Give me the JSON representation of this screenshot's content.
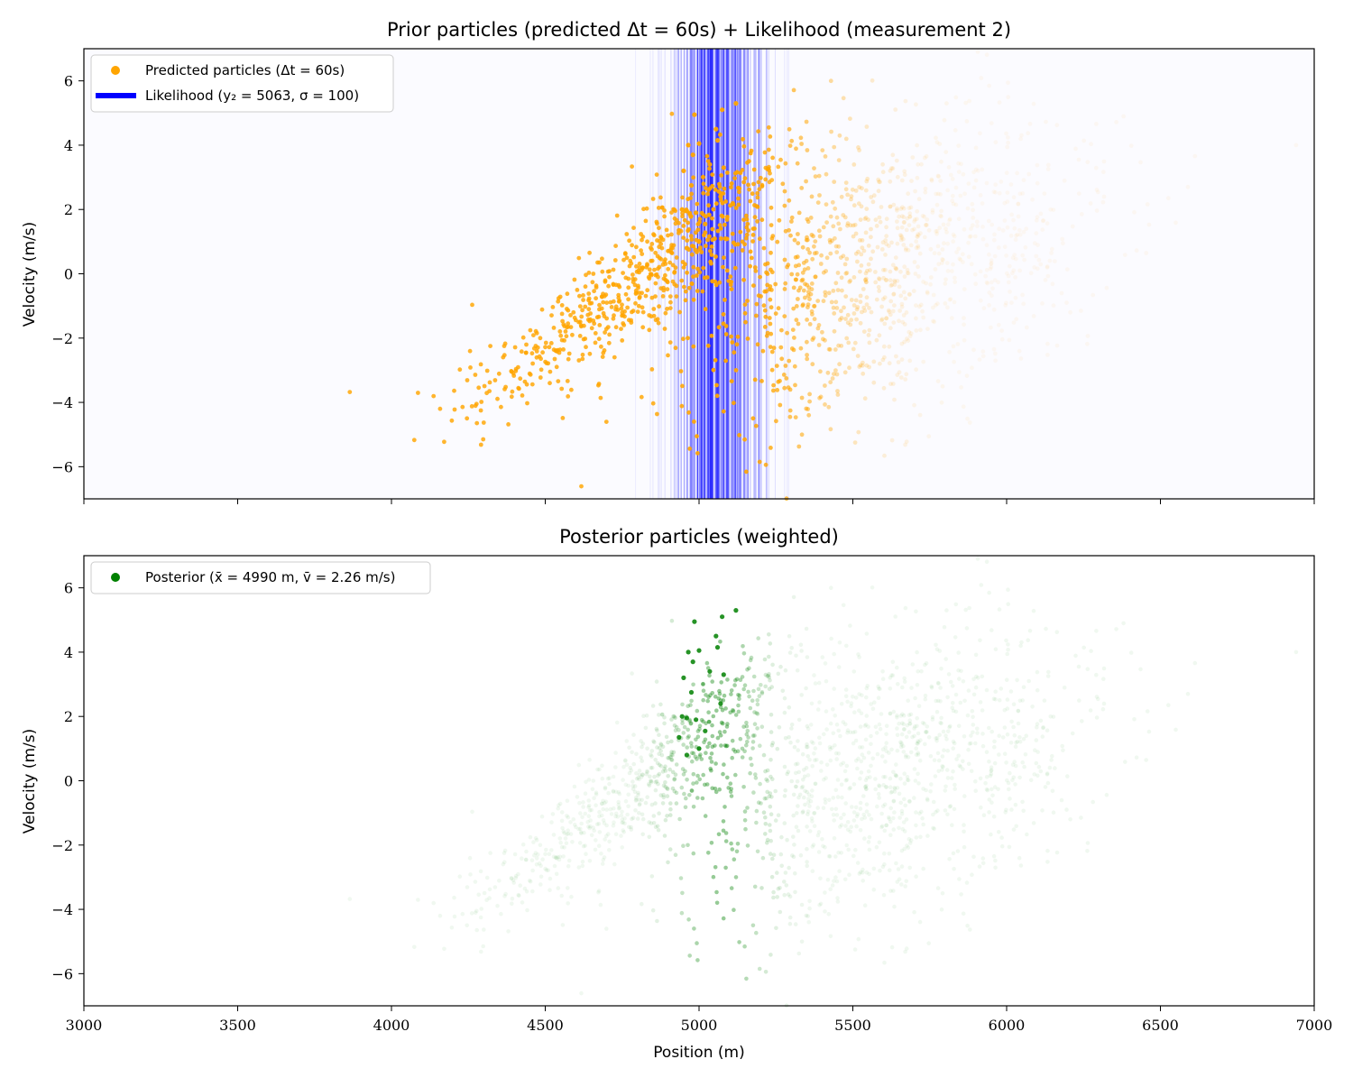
{
  "chart_data": [
    {
      "type": "scatter",
      "title": "Prior particles (predicted Δt = 60s) + Likelihood (measurement 2)",
      "xlabel": "",
      "ylabel": "Velocity (m/s)",
      "xlim": [
        3000,
        7000
      ],
      "ylim": [
        -7,
        7
      ],
      "xticks": [
        3000,
        3500,
        4000,
        4500,
        5000,
        5500,
        6000,
        6500,
        7000
      ],
      "yticks": [
        -6,
        -4,
        -2,
        0,
        2,
        4,
        6
      ],
      "ytick_labels": [
        "−6",
        "−4",
        "−2",
        "0",
        "2",
        "4",
        "6"
      ],
      "show_xtick_labels": false,
      "point_color": "#ffa500",
      "likelihood_color": "#0000ff",
      "legend_position": "upper-left",
      "legend": [
        {
          "kind": "marker",
          "color": "#ffa500",
          "label": "Predicted particles (Δt = 60s)"
        },
        {
          "kind": "line",
          "color": "#0000ff",
          "label": "Likelihood (y₂ = 5063,  σ = 100)"
        }
      ],
      "likelihood": {
        "center": 5063,
        "sigma": 100
      },
      "series": [
        {
          "values_note": "",
          "clusters": [
            {
              "x": 4690,
              "y": -1.2,
              "n": 380,
              "spread_x": 120,
              "spread_y": 1.6,
              "slope": 130
            },
            {
              "x": 4980,
              "y": 1.8,
              "n": 220,
              "spread_x": 90,
              "spread_y": 1.4,
              "slope": 110
            },
            {
              "x": 5600,
              "y": 0.2,
              "n": 1100,
              "spread_x": 330,
              "spread_y": 2.3,
              "slope": 55
            }
          ]
        }
      ]
    },
    {
      "type": "scatter",
      "title": "Posterior particles (weighted)",
      "xlabel": "Position (m)",
      "ylabel": "Velocity (m/s)",
      "xlim": [
        3000,
        7000
      ],
      "ylim": [
        -7,
        7
      ],
      "xticks": [
        3000,
        3500,
        4000,
        4500,
        5000,
        5500,
        6000,
        6500,
        7000
      ],
      "xtick_labels": [
        "3000",
        "3500",
        "4000",
        "4500",
        "5000",
        "5500",
        "6000",
        "6500",
        "7000"
      ],
      "yticks": [
        -6,
        -4,
        -2,
        0,
        2,
        4,
        6
      ],
      "ytick_labels": [
        "−6",
        "−4",
        "−2",
        "0",
        "2",
        "4",
        "6"
      ],
      "point_color": "#008000",
      "legend_position": "upper-left",
      "legend": [
        {
          "kind": "marker",
          "color": "#008000",
          "label": "Posterior (x̄ = 4990 m,  v̄ = 2.26 m/s)"
        }
      ],
      "posterior_mean": {
        "x": 4990,
        "v": 2.26
      },
      "highlight_points": [
        [
          5120,
          5.3
        ],
        [
          5075,
          5.1
        ],
        [
          4985,
          4.95
        ],
        [
          5055,
          4.5
        ],
        [
          5060,
          4.15
        ],
        [
          4965,
          4.0
        ],
        [
          5000,
          4.05
        ],
        [
          4980,
          3.7
        ],
        [
          5035,
          3.4
        ],
        [
          4950,
          3.2
        ],
        [
          5080,
          3.3
        ],
        [
          4975,
          2.75
        ],
        [
          5070,
          2.4
        ],
        [
          4945,
          2.0
        ],
        [
          4960,
          1.95
        ],
        [
          4990,
          1.9
        ],
        [
          5020,
          1.55
        ],
        [
          4935,
          1.35
        ],
        [
          5000,
          1.0
        ],
        [
          4960,
          0.8
        ]
      ]
    }
  ]
}
